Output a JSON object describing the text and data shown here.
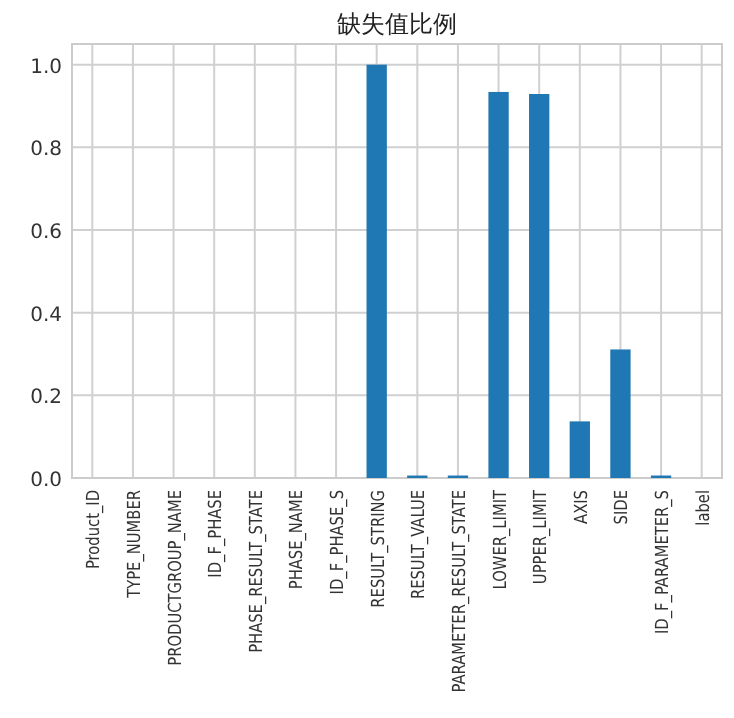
{
  "chart_data": {
    "type": "bar",
    "title": "缺失值比例",
    "categories": [
      "Product_ID",
      "TYPE_NUMBER",
      "PRODUCTGROUP_NAME",
      "ID_F_PHASE",
      "PHASE_RESULT_STATE",
      "PHASE_NAME",
      "ID_F_PHASE_S",
      "RESULT_STRING",
      "RESULT_VALUE",
      "PARAMETER_RESULT_STATE",
      "LOWER_LIMIT",
      "UPPER_LIMIT",
      "AXIS",
      "SIDE",
      "ID_F_PARAMETER_S",
      "label"
    ],
    "values": [
      0,
      0,
      0,
      0,
      0,
      0,
      0,
      1.0,
      0.006,
      0.006,
      0.934,
      0.929,
      0.137,
      0.311,
      0.006,
      0
    ],
    "color": "#1f77b4",
    "ylim": [
      0,
      1.05
    ],
    "yticks": [
      {
        "value": 0,
        "label": "0.0"
      },
      {
        "value": 0.2,
        "label": "0.2"
      },
      {
        "value": 0.4,
        "label": "0.4"
      },
      {
        "value": 0.6,
        "label": "0.6"
      },
      {
        "value": 0.8,
        "label": "0.8"
      },
      {
        "value": 1,
        "label": "1.0"
      }
    ],
    "grid": true
  }
}
